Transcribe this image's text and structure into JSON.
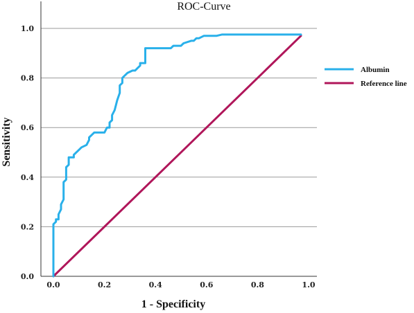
{
  "chart_data": {
    "type": "line",
    "title": "ROC-Curve",
    "xlabel": "1 - Specificity",
    "ylabel": "Sensitivity",
    "xlim": [
      0,
      1
    ],
    "ylim": [
      0,
      1
    ],
    "x_ticks": [
      "0.0",
      "0.2",
      "0.4",
      "0.6",
      "0.8",
      "1.0"
    ],
    "y_ticks": [
      "0.0",
      "0.2",
      "0.4",
      "0.6",
      "0.8",
      "1.0"
    ],
    "grid": "horizontal",
    "legend_position": "right",
    "series": [
      {
        "name": "Albumin",
        "color": "#29b0ea",
        "x": [
          0.0,
          0.0,
          0.01,
          0.01,
          0.02,
          0.02,
          0.03,
          0.03,
          0.04,
          0.04,
          0.05,
          0.05,
          0.06,
          0.06,
          0.08,
          0.08,
          0.1,
          0.11,
          0.13,
          0.14,
          0.14,
          0.15,
          0.16,
          0.2,
          0.21,
          0.22,
          0.22,
          0.23,
          0.23,
          0.24,
          0.25,
          0.26,
          0.26,
          0.27,
          0.27,
          0.28,
          0.29,
          0.29,
          0.31,
          0.32,
          0.33,
          0.34,
          0.34,
          0.36,
          0.36,
          0.38,
          0.46,
          0.47,
          0.5,
          0.51,
          0.54,
          0.55,
          0.56,
          0.57,
          0.59,
          0.6,
          0.64,
          0.66,
          0.97
        ],
        "y": [
          0.0,
          0.21,
          0.22,
          0.23,
          0.23,
          0.25,
          0.27,
          0.29,
          0.31,
          0.38,
          0.39,
          0.44,
          0.45,
          0.48,
          0.48,
          0.49,
          0.51,
          0.52,
          0.53,
          0.55,
          0.56,
          0.57,
          0.58,
          0.58,
          0.6,
          0.6,
          0.62,
          0.63,
          0.65,
          0.67,
          0.71,
          0.74,
          0.77,
          0.78,
          0.8,
          0.81,
          0.82,
          0.82,
          0.83,
          0.83,
          0.84,
          0.85,
          0.86,
          0.86,
          0.92,
          0.92,
          0.92,
          0.93,
          0.93,
          0.94,
          0.95,
          0.95,
          0.96,
          0.96,
          0.97,
          0.97,
          0.97,
          0.975,
          0.975
        ]
      },
      {
        "name": "Reference line",
        "color": "#b0165a",
        "x": [
          0,
          0.97
        ],
        "y": [
          0,
          0.97
        ]
      }
    ]
  }
}
